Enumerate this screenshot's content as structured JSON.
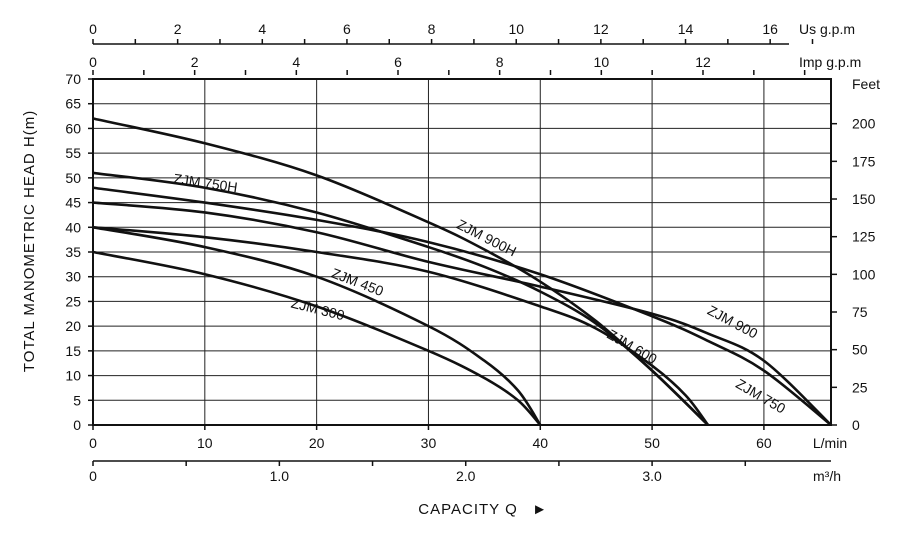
{
  "chart_data": {
    "type": "line",
    "title": "",
    "xlabel": "CAPACITY Q",
    "ylabel": "TOTAL MANOMETRIC HEAD H(m)",
    "xlim": [
      0,
      66
    ],
    "ylim": [
      0,
      70
    ],
    "grid": true,
    "x_unit": "L/min",
    "x_ticks": [
      0,
      10,
      20,
      30,
      40,
      50,
      60
    ],
    "y_ticks": [
      0,
      5,
      10,
      15,
      20,
      25,
      30,
      35,
      40,
      45,
      50,
      55,
      60,
      65,
      70
    ],
    "x_grid": [
      0,
      10,
      20,
      30,
      40,
      50,
      60
    ],
    "y_grid": [
      0,
      5,
      10,
      15,
      20,
      25,
      30,
      35,
      40,
      45,
      50,
      55,
      60,
      65,
      70
    ],
    "secondary_axes": {
      "feet": {
        "unit": "Feet",
        "ticks": [
          0,
          25,
          50,
          75,
          100,
          125,
          150,
          175,
          200
        ],
        "per_meter": 3.28084
      },
      "us_gpm": {
        "unit": "Us g.p.m",
        "ticks": [
          0,
          2,
          4,
          6,
          8,
          10,
          12,
          14,
          16
        ],
        "lpm_per_unit": 3.785
      },
      "imp_gpm": {
        "unit": "Imp g.p.m",
        "ticks": [
          0,
          2,
          4,
          6,
          8,
          10,
          12
        ],
        "lpm_per_unit": 4.546
      },
      "m3h": {
        "unit": "m³/h",
        "ticks": [
          "0",
          "1.0",
          "2.0",
          "3.0"
        ],
        "tick_values": [
          0,
          1,
          2,
          3
        ],
        "lpm_per_unit": 16.6667
      }
    },
    "arrow_glyph": "►",
    "series": [
      {
        "name": "ZJM 300",
        "x": [
          0,
          10,
          20,
          30,
          35,
          38,
          40
        ],
        "y": [
          35,
          30.5,
          24,
          15,
          9.5,
          5,
          0
        ],
        "label_at": [
          20,
          22.5
        ],
        "label_angle": 14
      },
      {
        "name": "ZJM 450",
        "x": [
          0,
          10,
          20,
          30,
          35,
          38,
          40
        ],
        "y": [
          40,
          36,
          30,
          20,
          13,
          7,
          0
        ],
        "label_at": [
          23.5,
          28
        ],
        "label_angle": 21
      },
      {
        "name": "ZJM 600",
        "x": [
          0,
          10,
          20,
          30,
          40,
          45,
          50,
          53,
          55
        ],
        "y": [
          40,
          38,
          35,
          31,
          24,
          19.5,
          12,
          6,
          0
        ],
        "label_at": [
          48,
          15
        ],
        "label_angle": 30
      },
      {
        "name": "ZJM 750",
        "x": [
          0,
          10,
          20,
          30,
          40,
          50,
          55,
          60,
          66
        ],
        "y": [
          48,
          45,
          41.5,
          37,
          30.5,
          22,
          17,
          11,
          0
        ],
        "label_at": [
          59.5,
          5
        ],
        "label_angle": 30
      },
      {
        "name": "ZJM 900",
        "x": [
          0,
          10,
          20,
          30,
          40,
          50,
          55,
          60,
          66
        ],
        "y": [
          45,
          43,
          39,
          33,
          28,
          22.5,
          18.5,
          13,
          0
        ],
        "label_at": [
          57,
          20
        ],
        "label_angle": 28
      },
      {
        "name": "ZJM 750H",
        "x": [
          0,
          10,
          20,
          30,
          35,
          40,
          45,
          50,
          55
        ],
        "y": [
          51,
          48,
          43,
          36,
          32,
          27,
          20.5,
          11,
          0
        ],
        "label_at": [
          10,
          48
        ],
        "label_angle": 8
      },
      {
        "name": "ZJM 900H",
        "x": [
          0,
          10,
          20,
          30,
          35,
          40,
          45,
          50,
          55
        ],
        "y": [
          62,
          57,
          50.5,
          41,
          35.5,
          29,
          21,
          11,
          0
        ],
        "label_at": [
          35,
          37
        ],
        "label_angle": 27
      }
    ]
  }
}
